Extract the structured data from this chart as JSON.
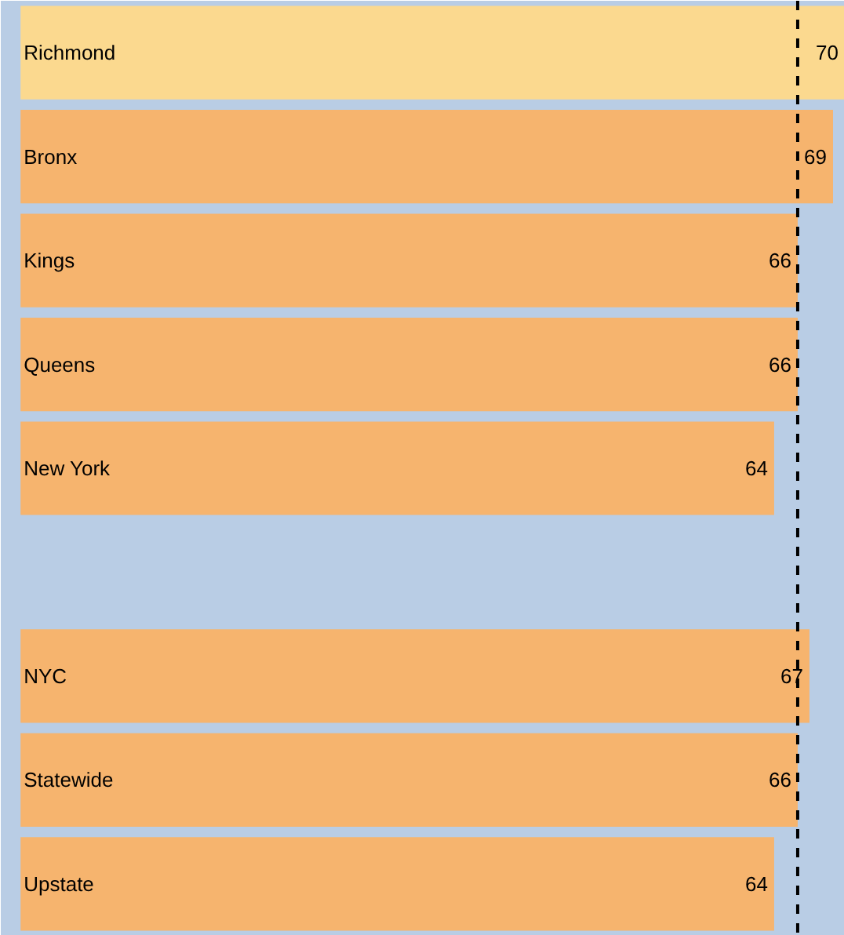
{
  "chart_data": {
    "type": "bar",
    "orientation": "horizontal",
    "categories": [
      "Richmond",
      "Bronx",
      "Kings",
      "Queens",
      "New York",
      null,
      "NYC",
      "Statewide",
      "Upstate"
    ],
    "values": [
      70,
      69,
      66,
      66,
      64,
      null,
      67,
      66,
      64
    ],
    "colors": [
      "#fbd98f",
      "#f6b46e",
      "#f6b46e",
      "#f6b46e",
      "#f6b46e",
      "#f6b46e",
      "#f6b46e",
      "#f6b46e",
      "#f6b46e"
    ],
    "data_labels": true,
    "grid": false,
    "tick_labels": false,
    "ref_lines": [
      {
        "axis": "x",
        "value": 66,
        "label": null,
        "color": "#000000",
        "line_style": "dashed"
      }
    ]
  }
}
